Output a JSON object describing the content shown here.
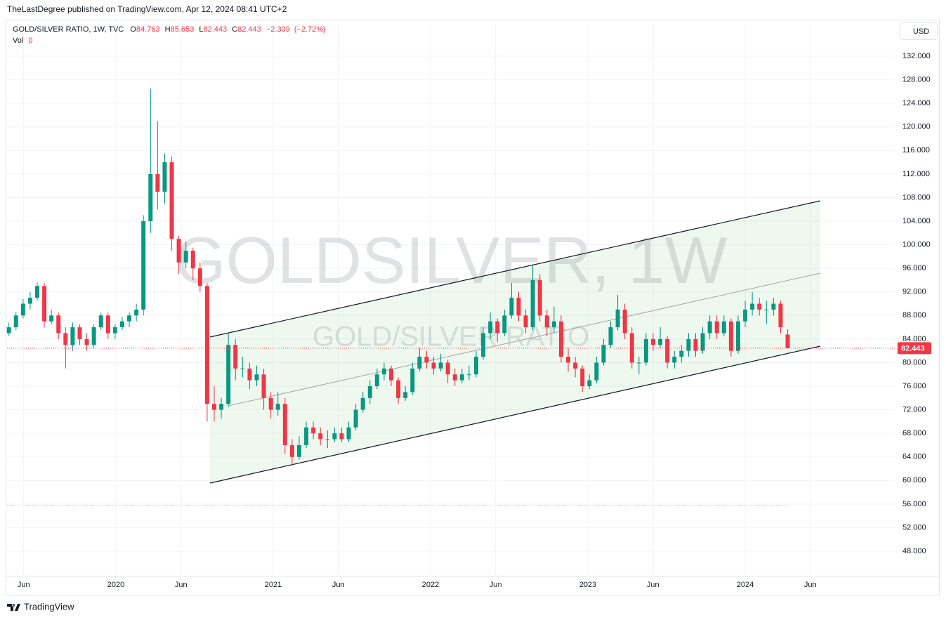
{
  "header": {
    "publisher": "TheLastDegree published on TradingView.com, Apr 12, 2024 08:41 UTC+2",
    "currency": "USD",
    "brand": "TradingView"
  },
  "legend": {
    "symbol": "GOLD/SILVER RATIO, 1W, TVC",
    "o_label": "O",
    "h_label": "H",
    "l_label": "L",
    "c_label": "C",
    "change": "−2.309",
    "change_pct": "(−2.72%)",
    "vol_label": "Vol",
    "vol": 0
  },
  "chart_data": {
    "type": "candlestick",
    "watermark": "GOLDSILVER, 1W",
    "watermark_sub": "GOLD/SILVER RATIO",
    "up_color": "#089981",
    "down_color": "#f23645",
    "grid": true,
    "xlim": [
      2019.308,
      2024.955
    ],
    "ylim": [
      43.83,
      137.96
    ],
    "xticks": [
      {
        "value": 2019.414,
        "label": "Jun"
      },
      2020,
      {
        "value": 2020.414,
        "label": "Jun"
      },
      2021,
      {
        "value": 2021.414,
        "label": "Jun"
      },
      2022,
      {
        "value": 2022.414,
        "label": "Jun"
      },
      2023,
      {
        "value": 2023.414,
        "label": "Jun"
      },
      2024,
      {
        "value": 2024.414,
        "label": "Jun"
      }
    ],
    "yticks": [
      {
        "value": 48,
        "label": "48.000"
      },
      {
        "value": 52,
        "label": "52.000"
      },
      {
        "value": 56,
        "label": "56.000"
      },
      {
        "value": 60,
        "label": "60.000"
      },
      {
        "value": 64,
        "label": "64.000"
      },
      {
        "value": 68,
        "label": "68.000"
      },
      {
        "value": 72,
        "label": "72.000"
      },
      {
        "value": 76,
        "label": "76.000"
      },
      {
        "value": 80,
        "label": "80.000"
      },
      {
        "value": 84,
        "label": "84.000"
      },
      {
        "value": 88,
        "label": "88.000"
      },
      {
        "value": 92,
        "label": "92.000"
      },
      {
        "value": 96,
        "label": "96.000"
      },
      {
        "value": 100,
        "label": "100.000"
      },
      {
        "value": 104,
        "label": "104.000"
      },
      {
        "value": 108,
        "label": "108.000"
      },
      {
        "value": 112,
        "label": "112.000"
      },
      {
        "value": 116,
        "label": "116.000"
      },
      {
        "value": 120,
        "label": "120.000"
      },
      {
        "value": 124,
        "label": "124.000"
      },
      {
        "value": 128,
        "label": "128.000"
      },
      {
        "value": 132,
        "label": "132.000"
      }
    ],
    "candles": [
      {
        "t": 2019.32,
        "o": 85,
        "h": 86.8,
        "l": 84.5,
        "c": 86
      },
      {
        "t": 2019.365,
        "o": 86,
        "h": 88.6,
        "l": 85.5,
        "c": 88
      },
      {
        "t": 2019.41,
        "o": 88,
        "h": 90.8,
        "l": 87.5,
        "c": 90
      },
      {
        "t": 2019.455,
        "o": 90,
        "h": 92,
        "l": 89,
        "c": 91
      },
      {
        "t": 2019.5,
        "o": 91,
        "h": 93.6,
        "l": 90.5,
        "c": 93
      },
      {
        "t": 2019.545,
        "o": 93,
        "h": 93.5,
        "l": 86,
        "c": 87
      },
      {
        "t": 2019.59,
        "o": 87,
        "h": 89,
        "l": 86.5,
        "c": 88
      },
      {
        "t": 2019.635,
        "o": 88,
        "h": 88.5,
        "l": 84,
        "c": 85
      },
      {
        "t": 2019.68,
        "o": 85,
        "h": 86,
        "l": 79,
        "c": 83
      },
      {
        "t": 2019.725,
        "o": 83,
        "h": 86.8,
        "l": 82,
        "c": 86
      },
      {
        "t": 2019.77,
        "o": 86,
        "h": 86.5,
        "l": 83,
        "c": 84
      },
      {
        "t": 2019.815,
        "o": 84,
        "h": 85,
        "l": 82,
        "c": 83
      },
      {
        "t": 2019.86,
        "o": 83,
        "h": 86.5,
        "l": 82.5,
        "c": 86
      },
      {
        "t": 2019.905,
        "o": 86,
        "h": 88.5,
        "l": 85.5,
        "c": 88
      },
      {
        "t": 2019.95,
        "o": 88,
        "h": 88.5,
        "l": 84,
        "c": 85
      },
      {
        "t": 2019.995,
        "o": 85,
        "h": 86.5,
        "l": 84,
        "c": 86
      },
      {
        "t": 2020.04,
        "o": 86,
        "h": 87.8,
        "l": 85.5,
        "c": 87
      },
      {
        "t": 2020.085,
        "o": 87,
        "h": 88.5,
        "l": 86,
        "c": 88
      },
      {
        "t": 2020.13,
        "o": 88,
        "h": 90,
        "l": 87,
        "c": 89
      },
      {
        "t": 2020.175,
        "o": 89,
        "h": 105,
        "l": 88,
        "c": 104
      },
      {
        "t": 2020.22,
        "o": 104,
        "h": 126.5,
        "l": 102,
        "c": 112
      },
      {
        "t": 2020.265,
        "o": 112,
        "h": 121,
        "l": 106,
        "c": 109
      },
      {
        "t": 2020.31,
        "o": 109,
        "h": 115.5,
        "l": 107,
        "c": 114
      },
      {
        "t": 2020.355,
        "o": 114,
        "h": 115,
        "l": 99,
        "c": 101
      },
      {
        "t": 2020.4,
        "o": 101,
        "h": 101.5,
        "l": 95,
        "c": 97
      },
      {
        "t": 2020.445,
        "o": 97,
        "h": 100.5,
        "l": 96,
        "c": 99
      },
      {
        "t": 2020.49,
        "o": 99,
        "h": 99.5,
        "l": 94,
        "c": 96
      },
      {
        "t": 2020.535,
        "o": 96,
        "h": 97,
        "l": 92,
        "c": 93
      },
      {
        "t": 2020.58,
        "o": 93,
        "h": 93.5,
        "l": 70,
        "c": 73
      },
      {
        "t": 2020.625,
        "o": 73,
        "h": 76,
        "l": 70,
        "c": 72
      },
      {
        "t": 2020.67,
        "o": 72,
        "h": 74,
        "l": 70.5,
        "c": 73
      },
      {
        "t": 2020.715,
        "o": 73,
        "h": 85,
        "l": 72.5,
        "c": 83
      },
      {
        "t": 2020.76,
        "o": 83,
        "h": 84,
        "l": 77,
        "c": 79
      },
      {
        "t": 2020.805,
        "o": 79,
        "h": 81,
        "l": 77.5,
        "c": 79
      },
      {
        "t": 2020.85,
        "o": 79,
        "h": 80,
        "l": 75.5,
        "c": 77
      },
      {
        "t": 2020.895,
        "o": 77,
        "h": 79.5,
        "l": 76,
        "c": 78
      },
      {
        "t": 2020.94,
        "o": 78,
        "h": 79,
        "l": 72,
        "c": 74
      },
      {
        "t": 2020.985,
        "o": 74,
        "h": 75,
        "l": 70.5,
        "c": 72
      },
      {
        "t": 2021.03,
        "o": 72,
        "h": 75,
        "l": 71,
        "c": 73
      },
      {
        "t": 2021.075,
        "o": 73,
        "h": 74,
        "l": 64.5,
        "c": 66
      },
      {
        "t": 2021.12,
        "o": 66,
        "h": 67,
        "l": 62.5,
        "c": 64
      },
      {
        "t": 2021.165,
        "o": 64,
        "h": 67.5,
        "l": 63.5,
        "c": 66
      },
      {
        "t": 2021.21,
        "o": 66,
        "h": 70,
        "l": 65.5,
        "c": 69
      },
      {
        "t": 2021.255,
        "o": 69,
        "h": 70,
        "l": 67,
        "c": 68
      },
      {
        "t": 2021.3,
        "o": 68,
        "h": 69,
        "l": 66,
        "c": 67
      },
      {
        "t": 2021.345,
        "o": 67,
        "h": 68.5,
        "l": 65.5,
        "c": 67
      },
      {
        "t": 2021.39,
        "o": 67,
        "h": 69,
        "l": 66.5,
        "c": 68
      },
      {
        "t": 2021.435,
        "o": 68,
        "h": 69,
        "l": 66.5,
        "c": 67
      },
      {
        "t": 2021.48,
        "o": 67,
        "h": 70,
        "l": 66.5,
        "c": 69
      },
      {
        "t": 2021.525,
        "o": 69,
        "h": 73,
        "l": 68.5,
        "c": 72
      },
      {
        "t": 2021.57,
        "o": 72,
        "h": 75,
        "l": 71.5,
        "c": 74
      },
      {
        "t": 2021.615,
        "o": 74,
        "h": 77,
        "l": 73,
        "c": 76
      },
      {
        "t": 2021.66,
        "o": 76,
        "h": 79,
        "l": 75.5,
        "c": 78
      },
      {
        "t": 2021.705,
        "o": 78,
        "h": 80,
        "l": 77,
        "c": 79
      },
      {
        "t": 2021.75,
        "o": 79,
        "h": 79.5,
        "l": 76,
        "c": 77
      },
      {
        "t": 2021.795,
        "o": 77,
        "h": 77.5,
        "l": 73,
        "c": 74
      },
      {
        "t": 2021.84,
        "o": 74,
        "h": 76,
        "l": 73.5,
        "c": 75
      },
      {
        "t": 2021.885,
        "o": 75,
        "h": 80,
        "l": 74.5,
        "c": 79
      },
      {
        "t": 2021.93,
        "o": 79,
        "h": 82.5,
        "l": 78.5,
        "c": 81
      },
      {
        "t": 2021.975,
        "o": 81,
        "h": 82,
        "l": 79,
        "c": 80
      },
      {
        "t": 2022.02,
        "o": 80,
        "h": 81,
        "l": 78,
        "c": 79
      },
      {
        "t": 2022.065,
        "o": 79,
        "h": 81.5,
        "l": 78.5,
        "c": 80
      },
      {
        "t": 2022.11,
        "o": 80,
        "h": 80.5,
        "l": 76.5,
        "c": 78
      },
      {
        "t": 2022.155,
        "o": 78,
        "h": 79,
        "l": 76,
        "c": 77
      },
      {
        "t": 2022.2,
        "o": 77,
        "h": 79,
        "l": 76.5,
        "c": 78
      },
      {
        "t": 2022.245,
        "o": 78,
        "h": 79.5,
        "l": 77,
        "c": 78
      },
      {
        "t": 2022.29,
        "o": 78,
        "h": 82,
        "l": 77.5,
        "c": 81
      },
      {
        "t": 2022.335,
        "o": 81,
        "h": 86,
        "l": 80.5,
        "c": 85
      },
      {
        "t": 2022.38,
        "o": 85,
        "h": 88.5,
        "l": 84,
        "c": 87
      },
      {
        "t": 2022.425,
        "o": 87,
        "h": 87.5,
        "l": 83.5,
        "c": 85
      },
      {
        "t": 2022.47,
        "o": 85,
        "h": 89,
        "l": 84.5,
        "c": 88
      },
      {
        "t": 2022.515,
        "o": 88,
        "h": 93.5,
        "l": 87.5,
        "c": 91
      },
      {
        "t": 2022.56,
        "o": 91,
        "h": 92,
        "l": 87,
        "c": 88
      },
      {
        "t": 2022.605,
        "o": 88,
        "h": 89,
        "l": 85,
        "c": 86
      },
      {
        "t": 2022.65,
        "o": 86,
        "h": 96.5,
        "l": 85.5,
        "c": 94
      },
      {
        "t": 2022.695,
        "o": 94,
        "h": 95,
        "l": 87,
        "c": 88
      },
      {
        "t": 2022.74,
        "o": 88,
        "h": 89,
        "l": 84.5,
        "c": 86
      },
      {
        "t": 2022.785,
        "o": 86,
        "h": 89.5,
        "l": 85,
        "c": 87
      },
      {
        "t": 2022.83,
        "o": 87,
        "h": 88,
        "l": 80,
        "c": 81
      },
      {
        "t": 2022.875,
        "o": 81,
        "h": 82.5,
        "l": 78.5,
        "c": 80
      },
      {
        "t": 2022.92,
        "o": 80,
        "h": 81,
        "l": 77.5,
        "c": 79
      },
      {
        "t": 2022.965,
        "o": 79,
        "h": 79.5,
        "l": 75,
        "c": 76
      },
      {
        "t": 2023.01,
        "o": 76,
        "h": 78,
        "l": 75.5,
        "c": 77
      },
      {
        "t": 2023.055,
        "o": 77,
        "h": 81,
        "l": 76.5,
        "c": 80
      },
      {
        "t": 2023.1,
        "o": 80,
        "h": 84,
        "l": 79.5,
        "c": 83
      },
      {
        "t": 2023.145,
        "o": 83,
        "h": 87,
        "l": 82.5,
        "c": 86
      },
      {
        "t": 2023.19,
        "o": 86,
        "h": 91.5,
        "l": 85.5,
        "c": 89
      },
      {
        "t": 2023.235,
        "o": 89,
        "h": 90,
        "l": 84,
        "c": 85
      },
      {
        "t": 2023.28,
        "o": 85,
        "h": 86,
        "l": 79,
        "c": 80
      },
      {
        "t": 2023.325,
        "o": 80,
        "h": 81,
        "l": 78,
        "c": 80
      },
      {
        "t": 2023.37,
        "o": 80,
        "h": 85,
        "l": 79.5,
        "c": 84
      },
      {
        "t": 2023.415,
        "o": 84,
        "h": 85,
        "l": 82,
        "c": 83
      },
      {
        "t": 2023.46,
        "o": 83,
        "h": 86,
        "l": 82.5,
        "c": 84
      },
      {
        "t": 2023.505,
        "o": 84,
        "h": 84.5,
        "l": 79,
        "c": 80
      },
      {
        "t": 2023.55,
        "o": 80,
        "h": 82,
        "l": 79,
        "c": 81
      },
      {
        "t": 2023.595,
        "o": 81,
        "h": 83,
        "l": 80,
        "c": 82
      },
      {
        "t": 2023.64,
        "o": 82,
        "h": 85,
        "l": 81,
        "c": 84
      },
      {
        "t": 2023.685,
        "o": 84,
        "h": 85,
        "l": 81,
        "c": 82
      },
      {
        "t": 2023.73,
        "o": 82,
        "h": 86,
        "l": 81.5,
        "c": 85
      },
      {
        "t": 2023.775,
        "o": 85,
        "h": 88,
        "l": 84,
        "c": 87
      },
      {
        "t": 2023.82,
        "o": 87,
        "h": 88,
        "l": 84,
        "c": 85
      },
      {
        "t": 2023.865,
        "o": 85,
        "h": 88,
        "l": 84.5,
        "c": 87
      },
      {
        "t": 2023.91,
        "o": 87,
        "h": 87.5,
        "l": 81,
        "c": 82
      },
      {
        "t": 2023.955,
        "o": 82,
        "h": 88,
        "l": 81.5,
        "c": 87
      },
      {
        "t": 2024.0,
        "o": 87,
        "h": 90.5,
        "l": 86,
        "c": 89
      },
      {
        "t": 2024.045,
        "o": 89,
        "h": 92,
        "l": 88,
        "c": 90
      },
      {
        "t": 2024.09,
        "o": 90,
        "h": 91,
        "l": 88,
        "c": 89
      },
      {
        "t": 2024.135,
        "o": 89,
        "h": 90.5,
        "l": 86.5,
        "c": 89
      },
      {
        "t": 2024.18,
        "o": 89,
        "h": 91,
        "l": 88,
        "c": 90
      },
      {
        "t": 2024.225,
        "o": 90,
        "h": 90.5,
        "l": 85,
        "c": 86
      },
      {
        "t": 2024.27,
        "o": 84.763,
        "h": 85.653,
        "l": 82.443,
        "c": 82.443
      }
    ]
  }
}
